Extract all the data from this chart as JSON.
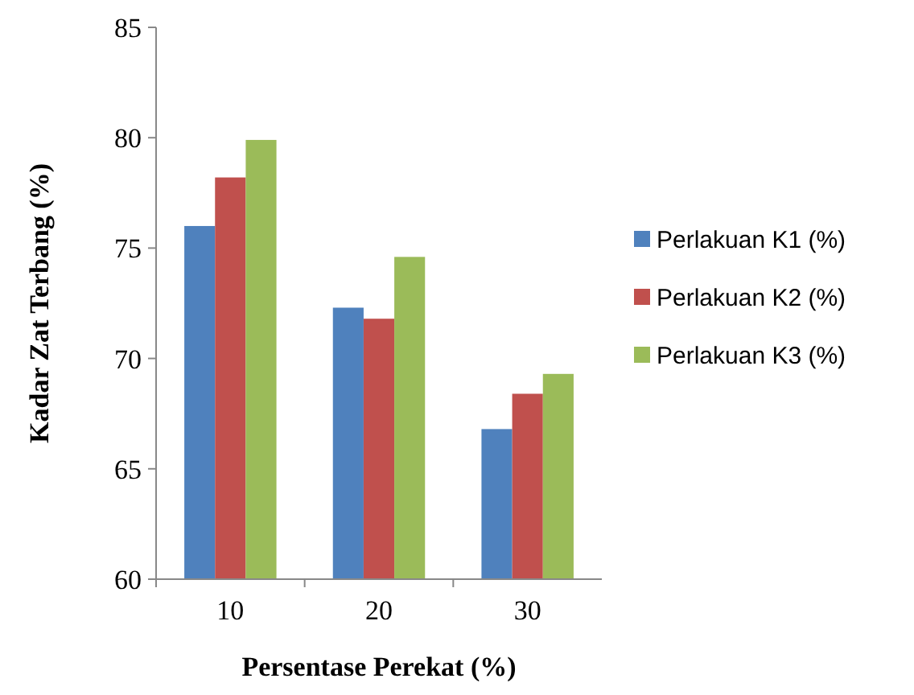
{
  "chart_data": {
    "type": "bar",
    "xlabel": "Persentase Perekat (%)",
    "ylabel": "Kadar Zat Terbang (%)",
    "categories": [
      "10",
      "20",
      "30"
    ],
    "series": [
      {
        "name": "Perlakuan K1 (%)",
        "color": "#4f81bd",
        "values": [
          76.0,
          72.3,
          66.8
        ]
      },
      {
        "name": "Perlakuan K2 (%)",
        "color": "#c0504d",
        "values": [
          78.2,
          71.8,
          68.4
        ]
      },
      {
        "name": "Perlakuan K3 (%)",
        "color": "#9bbb59",
        "values": [
          79.9,
          74.6,
          69.3
        ]
      }
    ],
    "ylim": [
      60,
      85
    ],
    "yticks": [
      60,
      65,
      70,
      75,
      80,
      85
    ],
    "grid": false,
    "legend": "right"
  }
}
